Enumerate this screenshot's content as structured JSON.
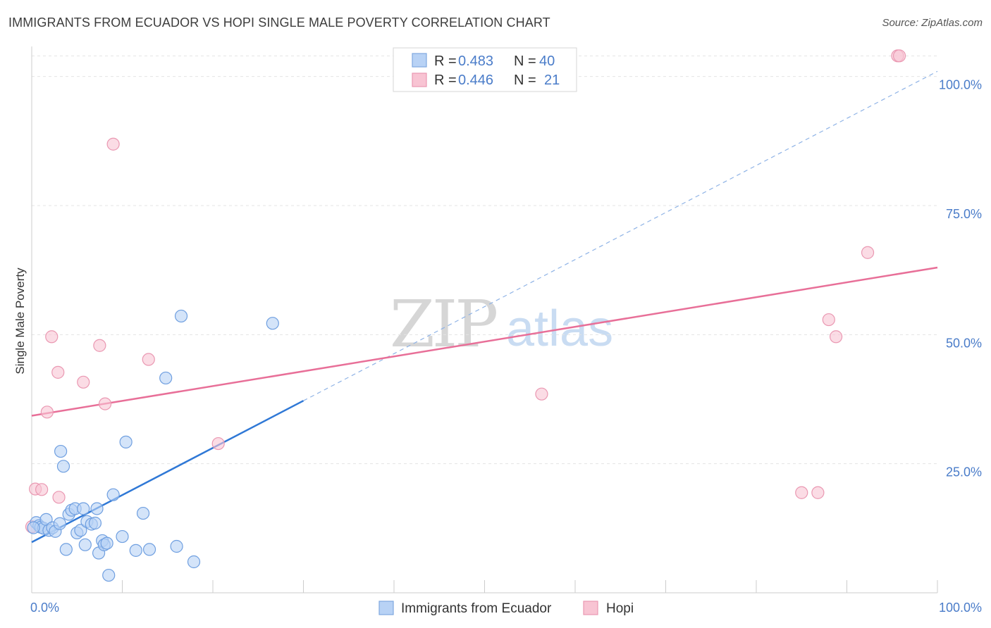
{
  "header": {
    "title": "IMMIGRANTS FROM ECUADOR VS HOPI SINGLE MALE POVERTY CORRELATION CHART",
    "source": "Source: ZipAtlas.com"
  },
  "watermark": {
    "zip": "ZIP",
    "atlas": "atlas"
  },
  "colors": {
    "blue": "#4a7cc9",
    "blue_fill": "#b8d2f5",
    "blue_line": "#2f78d6",
    "pink_fill": "#f8c4d3",
    "pink_stroke": "#ea98b2",
    "pink_line": "#e86f98",
    "grid": "#e4e4e4"
  },
  "legend": {
    "rows": [
      {
        "r_label": "R =",
        "r_value": "0.483",
        "n_label": "N =",
        "n_value": "40"
      },
      {
        "r_label": "R =",
        "r_value": "0.446",
        "n_label": "N =",
        "n_value": "21"
      }
    ]
  },
  "chart_data": {
    "type": "scatter",
    "title": "IMMIGRANTS FROM ECUADOR VS HOPI SINGLE MALE POVERTY CORRELATION CHART",
    "xlabel": "",
    "ylabel": "Single Male Poverty",
    "xlim": [
      0,
      100
    ],
    "ylim": [
      0,
      105
    ],
    "x_tick_labels": [
      "0.0%",
      "100.0%"
    ],
    "y_ticks": [
      {
        "value": 25,
        "label": "25.0%"
      },
      {
        "value": 50,
        "label": "50.0%"
      },
      {
        "value": 75,
        "label": "75.0%"
      },
      {
        "value": 100,
        "label": "100.0%"
      }
    ],
    "series": [
      {
        "name": "Immigrants from Ecuador",
        "r": 0.483,
        "n": 40,
        "trend": {
          "x0": 0,
          "y0": 9.8,
          "x1": 30,
          "y1": 37.2,
          "dashed_to_x": 100,
          "dashed_to_y": 101
        },
        "points": [
          [
            0.5,
            13.6
          ],
          [
            0.8,
            13.0
          ],
          [
            1.0,
            12.7
          ],
          [
            1.3,
            12.5
          ],
          [
            1.6,
            14.2
          ],
          [
            1.9,
            12.1
          ],
          [
            2.3,
            12.6
          ],
          [
            2.6,
            11.9
          ],
          [
            3.1,
            13.4
          ],
          [
            3.5,
            24.5
          ],
          [
            3.2,
            27.4
          ],
          [
            3.8,
            8.4
          ],
          [
            4.1,
            15.2
          ],
          [
            4.4,
            16.0
          ],
          [
            4.8,
            16.3
          ],
          [
            5.0,
            11.6
          ],
          [
            5.4,
            12.1
          ],
          [
            5.7,
            16.3
          ],
          [
            5.9,
            9.3
          ],
          [
            6.1,
            13.8
          ],
          [
            6.6,
            13.3
          ],
          [
            7.0,
            13.5
          ],
          [
            7.2,
            16.3
          ],
          [
            7.4,
            7.7
          ],
          [
            7.8,
            10.1
          ],
          [
            8.0,
            9.3
          ],
          [
            8.3,
            9.6
          ],
          [
            8.5,
            3.4
          ],
          [
            9.0,
            19.0
          ],
          [
            10.0,
            10.9
          ],
          [
            10.4,
            29.2
          ],
          [
            11.5,
            8.2
          ],
          [
            12.3,
            15.4
          ],
          [
            13.0,
            8.4
          ],
          [
            14.8,
            41.6
          ],
          [
            16.0,
            9.0
          ],
          [
            16.5,
            53.6
          ],
          [
            17.9,
            6.0
          ],
          [
            26.6,
            52.2
          ],
          [
            0.2,
            12.6
          ]
        ]
      },
      {
        "name": "Hopi",
        "r": 0.446,
        "n": 21,
        "trend": {
          "x0": 0,
          "y0": 34.3,
          "x1": 100,
          "y1": 63.0
        },
        "points": [
          [
            0.4,
            20.1
          ],
          [
            1.1,
            20.0
          ],
          [
            1.7,
            35.0
          ],
          [
            2.2,
            49.6
          ],
          [
            2.9,
            42.7
          ],
          [
            3.0,
            18.5
          ],
          [
            5.7,
            40.8
          ],
          [
            7.5,
            47.9
          ],
          [
            8.1,
            36.6
          ],
          [
            9.0,
            86.9
          ],
          [
            12.9,
            45.2
          ],
          [
            20.6,
            28.9
          ],
          [
            56.3,
            38.5
          ],
          [
            85.0,
            19.4
          ],
          [
            86.8,
            19.4
          ],
          [
            88.0,
            52.9
          ],
          [
            88.8,
            49.6
          ],
          [
            92.3,
            65.9
          ],
          [
            95.6,
            104.0
          ],
          [
            95.8,
            104.0
          ],
          [
            0.0,
            12.8
          ]
        ]
      }
    ]
  }
}
